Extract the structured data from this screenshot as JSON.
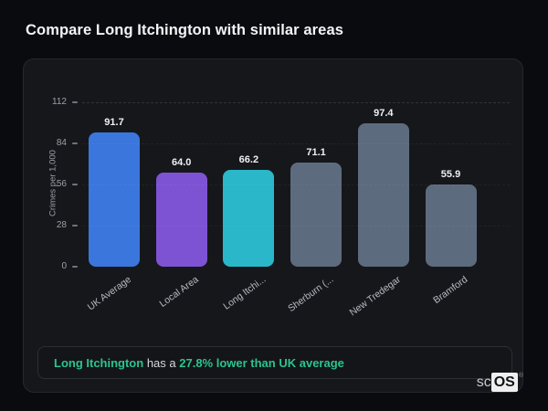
{
  "page": {
    "title": "Compare Long Itchington with similar areas"
  },
  "chart_data": {
    "type": "bar",
    "title": "Compare Long Itchington with similar areas",
    "categories": [
      "UK Average",
      "Local Area",
      "Long Itchi...",
      "Sherburn (...",
      "New Tredegar",
      "Bramford"
    ],
    "values": [
      91.7,
      64.0,
      66.2,
      71.1,
      97.4,
      55.9
    ],
    "value_labels": [
      "91.7",
      "64.0",
      "66.2",
      "71.1",
      "97.4",
      "55.9"
    ],
    "bar_colors": [
      "#3b76dc",
      "#7d53d4",
      "#29b7c9",
      "#5d6b7e",
      "#5d6b7e",
      "#5d6b7e"
    ],
    "xlabel": "",
    "ylabel": "Crimes per 1,000",
    "yticks": [
      0,
      28,
      56,
      84,
      112
    ],
    "ylim": [
      0,
      112
    ],
    "grid": "faint dashed horizontal lines at each y tick",
    "legend": "none"
  },
  "note": {
    "highlight": "Long Itchington",
    "middle": " has a ",
    "stat": "27.8% lower than UK average"
  },
  "logo": {
    "prefix": "sc",
    "suffix": "OS",
    "registered": "®"
  },
  "colors": {
    "background": "#0a0b0e",
    "panel": "#16171b",
    "accent_green": "#2bc48e",
    "bar_blue": "#3b76dc",
    "bar_purple": "#7d53d4",
    "bar_cyan": "#29b7c9",
    "bar_slate": "#5d6b7e"
  }
}
